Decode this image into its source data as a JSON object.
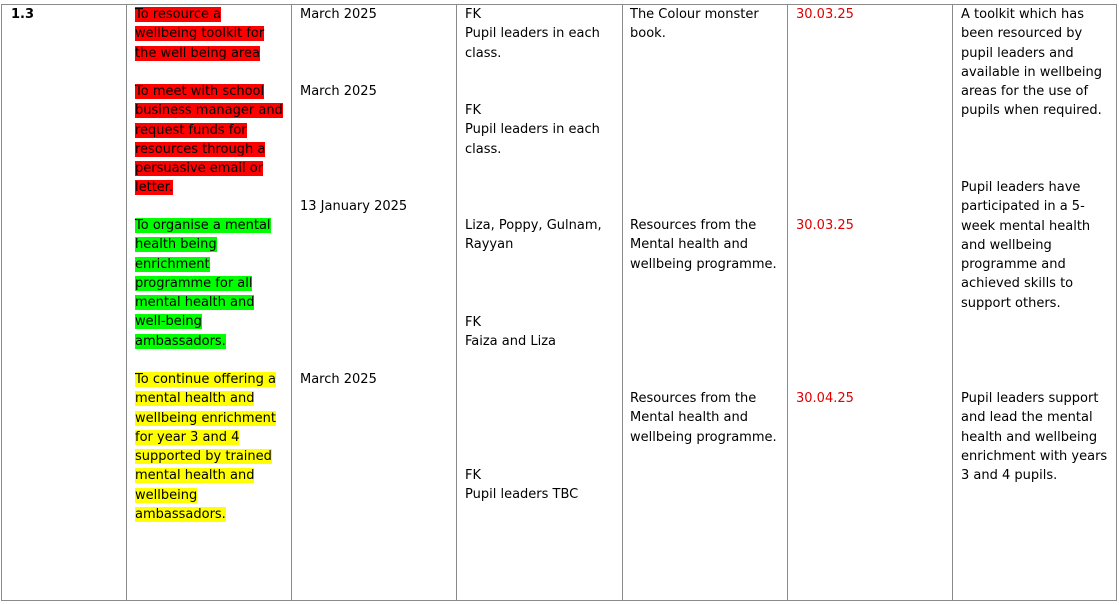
{
  "row_id": "1.3",
  "actions": [
    {
      "lines": [
        "To resource a",
        "wellbeing toolkit for",
        "the well being area"
      ],
      "rag": "#ff0000",
      "text_color": "#000000"
    },
    {
      "lines": [
        "To meet with school",
        "business manager and",
        "request funds for",
        "resources through a",
        "persuasive email or",
        "letter."
      ],
      "rag": "#ff0000",
      "text_color": "#000000"
    },
    {
      "lines": [
        "To organise a mental",
        "health being",
        "enrichment",
        "programme for all",
        "mental health and",
        "well-being",
        "ambassadors."
      ],
      "rag": "#00ff00",
      "text_color": "#000000"
    },
    {
      "lines": [
        "To continue offering a",
        "mental health and",
        "wellbeing enrichment",
        "for year 3 and 4",
        "supported by trained",
        "mental health and",
        "wellbeing",
        "ambassadors."
      ],
      "rag": "#ffff00",
      "text_color": "#000000"
    }
  ],
  "timescales": [
    "March 2025",
    "March 2025",
    "13 January 2025",
    "March 2025"
  ],
  "leads": [
    {
      "lines": [
        "FK",
        "Pupil leaders in each",
        "class."
      ]
    },
    {
      "lines": [
        "FK",
        "Pupil leaders in each",
        "class."
      ]
    },
    {
      "lines": [
        "Liza, Poppy, Gulnam,",
        "Rayyan"
      ]
    },
    {
      "lines": [
        "FK",
        "Faiza and Liza"
      ]
    },
    {
      "lines": [
        "FK",
        "Pupil leaders TBC"
      ]
    }
  ],
  "resources": [
    {
      "lines": [
        "The Colour monster",
        "book."
      ]
    },
    {
      "lines": [
        "Resources from the",
        "Mental health and",
        "wellbeing programme."
      ]
    },
    {
      "lines": [
        "Resources from the",
        "Mental health and",
        "wellbeing programme."
      ]
    }
  ],
  "review_dates": [
    "30.03.25",
    "30.03.25",
    "30.04.25"
  ],
  "review_color": "#e00000",
  "success_criteria": [
    {
      "lines": [
        "A toolkit which has",
        "been resourced by",
        "pupil leaders and",
        "available in wellbeing",
        "areas for the use of",
        "pupils when required."
      ]
    },
    {
      "lines": [
        "Pupil leaders have",
        "participated in a 5-",
        "week mental health",
        "and wellbeing",
        "programme and",
        "achieved skills to",
        "support others."
      ]
    },
    {
      "lines": [
        "Pupil leaders support",
        "and lead the mental",
        "health and wellbeing",
        "enrichment with years",
        "3 and 4 pupils."
      ]
    }
  ]
}
